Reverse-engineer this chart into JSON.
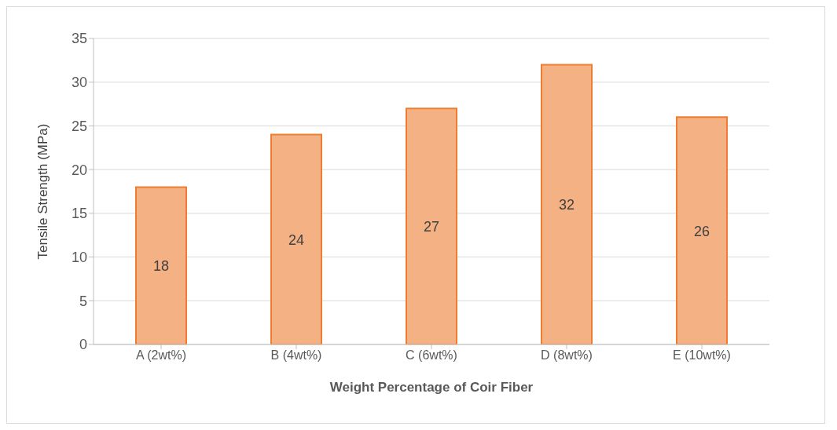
{
  "chart_data": {
    "type": "bar",
    "xlabel": "Weight Percentage of Coir Fiber",
    "ylabel": "Tensile Strength (MPa)",
    "categories": [
      "A (2wt%)",
      "B (4wt%)",
      "C (6wt%)",
      "D (8wt%)",
      "E (10wt%)"
    ],
    "values": [
      18,
      24,
      27,
      32,
      26
    ],
    "color": "#f4b183",
    "ylim": [
      0,
      35
    ],
    "yticks": [
      0,
      5,
      10,
      15,
      20,
      25,
      30,
      35
    ],
    "grid": "y",
    "data_labels": true
  }
}
